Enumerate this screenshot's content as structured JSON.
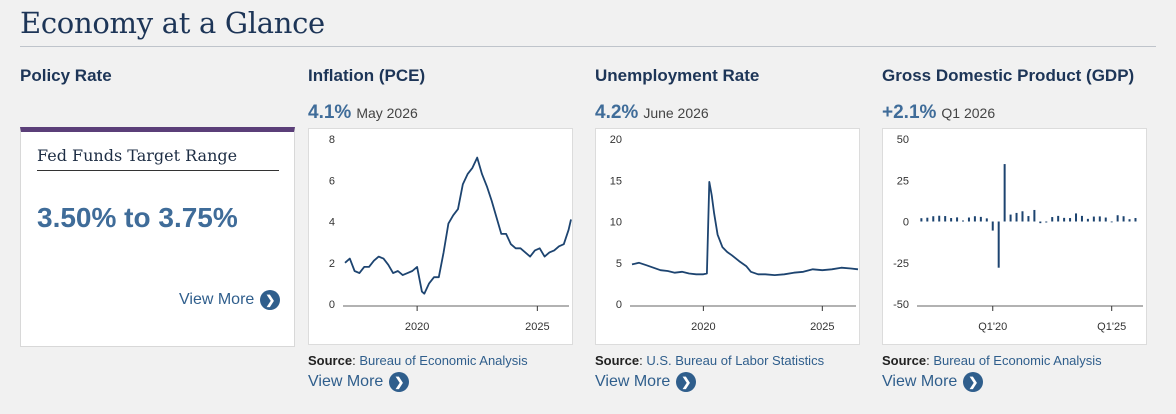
{
  "page": {
    "title": "Economy at a Glance"
  },
  "policy": {
    "heading": "Policy Rate",
    "card_title": "Fed Funds Target Range",
    "rate": "3.50% to 3.75%",
    "view_more": "View More"
  },
  "inflation": {
    "heading": "Inflation (PCE)",
    "value": "4.1%",
    "period": "May 2026",
    "source_label": "Source",
    "source": "Bureau of Economic Analysis",
    "view_more": "View More"
  },
  "unemployment": {
    "heading": "Unemployment Rate",
    "value": "4.2%",
    "period": "June 2026",
    "source_label": "Source",
    "source": "U.S. Bureau of Labor Statistics",
    "view_more": "View More"
  },
  "gdp": {
    "heading": "Gross Domestic Product (GDP)",
    "value": "+2.1%",
    "period": "Q1 2026",
    "source_label": "Source",
    "source": "Bureau of Economic Analysis",
    "view_more": "View More"
  },
  "footer_cut": "",
  "colors": {
    "line": "#1d4470",
    "accent": "#3f6c99",
    "card_top": "#5b3f79"
  },
  "chart_data": [
    {
      "type": "line",
      "name_ref": "inflation",
      "xlim": [
        2017.0,
        2026.4
      ],
      "ylim": [
        0,
        8
      ],
      "yticks": [
        0,
        2,
        4,
        6,
        8
      ],
      "xticks": [
        2020,
        2025
      ],
      "xtick_labels": [
        "2020",
        "2025"
      ],
      "x": [
        2017.0,
        2017.2,
        2017.4,
        2017.6,
        2017.8,
        2018.0,
        2018.2,
        2018.4,
        2018.6,
        2018.8,
        2019.0,
        2019.2,
        2019.4,
        2019.6,
        2019.8,
        2020.0,
        2020.2,
        2020.3,
        2020.5,
        2020.7,
        2020.9,
        2021.1,
        2021.3,
        2021.5,
        2021.7,
        2021.9,
        2022.1,
        2022.3,
        2022.5,
        2022.7,
        2022.9,
        2023.1,
        2023.3,
        2023.5,
        2023.7,
        2023.9,
        2024.1,
        2024.3,
        2024.5,
        2024.7,
        2024.9,
        2025.1,
        2025.3,
        2025.5,
        2025.7,
        2025.9,
        2026.1,
        2026.3,
        2026.4
      ],
      "y": [
        2.0,
        2.2,
        1.6,
        1.5,
        1.8,
        1.8,
        2.1,
        2.3,
        2.2,
        1.9,
        1.5,
        1.6,
        1.4,
        1.5,
        1.6,
        1.8,
        0.6,
        0.5,
        1.0,
        1.3,
        1.3,
        2.5,
        3.9,
        4.3,
        4.6,
        5.8,
        6.3,
        6.6,
        7.1,
        6.3,
        5.7,
        5.0,
        4.2,
        3.4,
        3.4,
        2.9,
        2.7,
        2.7,
        2.5,
        2.3,
        2.6,
        2.7,
        2.3,
        2.5,
        2.6,
        2.8,
        2.9,
        3.6,
        4.1
      ]
    },
    {
      "type": "line",
      "name_ref": "unemployment",
      "xlim": [
        2017.0,
        2026.5
      ],
      "ylim": [
        0,
        20
      ],
      "yticks": [
        0,
        5,
        10,
        15,
        20
      ],
      "xticks": [
        2020,
        2025
      ],
      "xtick_labels": [
        "2020",
        "2025"
      ],
      "x": [
        2017.0,
        2017.3,
        2017.6,
        2017.9,
        2018.2,
        2018.5,
        2018.8,
        2019.1,
        2019.4,
        2019.7,
        2020.0,
        2020.15,
        2020.25,
        2020.35,
        2020.45,
        2020.6,
        2020.8,
        2021.0,
        2021.2,
        2021.5,
        2021.8,
        2022.0,
        2022.3,
        2022.6,
        2023.0,
        2023.4,
        2023.8,
        2024.2,
        2024.6,
        2025.0,
        2025.4,
        2025.8,
        2026.2,
        2026.5
      ],
      "y": [
        4.8,
        5.0,
        4.7,
        4.4,
        4.1,
        4.0,
        3.8,
        3.9,
        3.7,
        3.6,
        3.6,
        3.7,
        14.8,
        13.2,
        11.0,
        8.4,
        6.9,
        6.3,
        5.9,
        5.2,
        4.6,
        3.9,
        3.6,
        3.6,
        3.5,
        3.6,
        3.8,
        3.9,
        4.2,
        4.1,
        4.2,
        4.4,
        4.3,
        4.2
      ]
    },
    {
      "type": "bar",
      "name_ref": "gdp",
      "xlim": [
        2016.9,
        2026.4
      ],
      "ylim": [
        -50,
        50
      ],
      "yticks": [
        -50,
        -25,
        0,
        25,
        50
      ],
      "xticks": [
        2020.0,
        2025.0
      ],
      "xtick_labels": [
        "Q1'20",
        "Q1'25"
      ],
      "x": [
        2017.0,
        2017.25,
        2017.5,
        2017.75,
        2018.0,
        2018.25,
        2018.5,
        2018.75,
        2019.0,
        2019.25,
        2019.5,
        2019.75,
        2020.0,
        2020.25,
        2020.5,
        2020.75,
        2021.0,
        2021.25,
        2021.5,
        2021.75,
        2022.0,
        2022.25,
        2022.5,
        2022.75,
        2023.0,
        2023.25,
        2023.5,
        2023.75,
        2024.0,
        2024.25,
        2024.5,
        2024.75,
        2025.0,
        2025.25,
        2025.5,
        2025.75,
        2026.0
      ],
      "values": [
        2.0,
        2.3,
        3.2,
        3.5,
        3.3,
        2.1,
        2.5,
        0.6,
        2.4,
        3.2,
        2.8,
        1.9,
        -5.5,
        -28.0,
        34.8,
        4.2,
        5.2,
        6.2,
        3.3,
        7.0,
        -1.0,
        -0.6,
        2.7,
        3.4,
        2.2,
        2.1,
        4.9,
        3.4,
        1.6,
        3.0,
        3.1,
        2.4,
        -0.5,
        3.8,
        3.2,
        1.4,
        2.1
      ]
    }
  ]
}
